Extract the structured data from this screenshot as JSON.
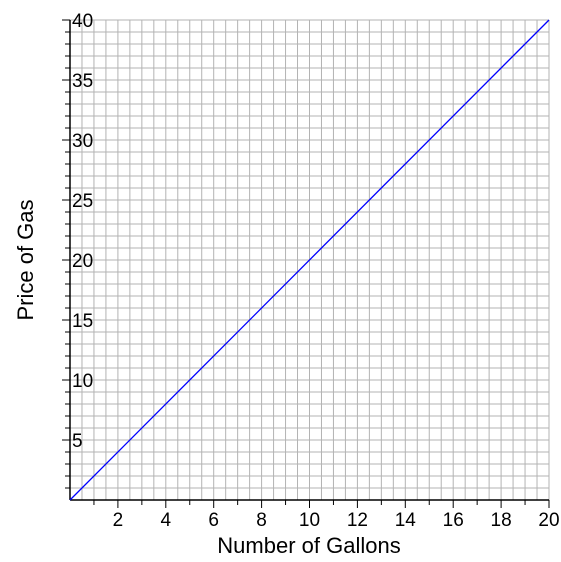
{
  "chart_data": {
    "type": "line",
    "title": "",
    "xlabel": "Number of Gallons",
    "ylabel": "Price of Gas",
    "xlim": [
      0,
      20
    ],
    "ylim": [
      0,
      40
    ],
    "grid": true,
    "x_ticks": [
      2,
      4,
      6,
      8,
      10,
      12,
      14,
      16,
      18,
      20
    ],
    "y_ticks": [
      5,
      10,
      15,
      20,
      25,
      30,
      35,
      40
    ],
    "series": [
      {
        "color": "#0000ff",
        "x": [
          0,
          20
        ],
        "y": [
          0,
          40
        ]
      }
    ],
    "colors": {
      "grid": "#b3b3b3",
      "axis": "#000000",
      "line": "#0000ff"
    }
  }
}
